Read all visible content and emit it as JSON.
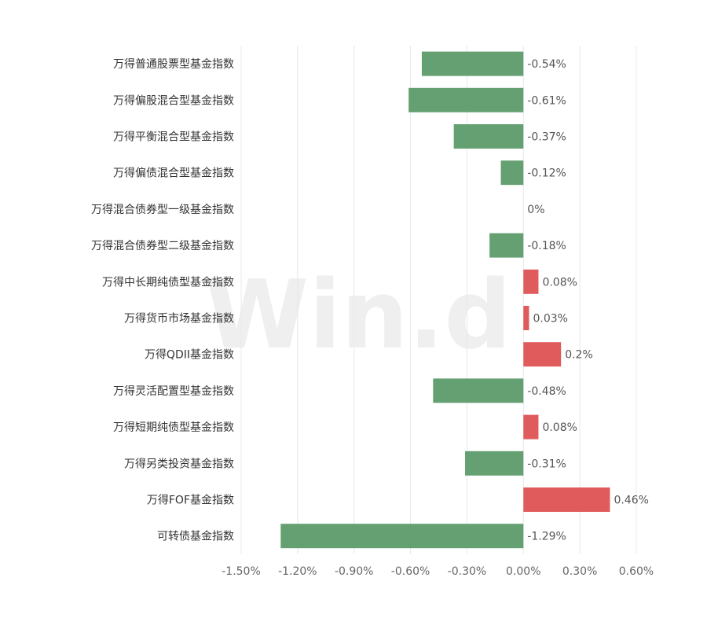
{
  "watermark": "Win.d",
  "colors": {
    "negative": "#64a072",
    "positive": "#e05c5c"
  },
  "chart_data": {
    "type": "bar",
    "orientation": "horizontal",
    "categories": [
      "万得普通股票型基金指数",
      "万得偏股混合型基金指数",
      "万得平衡混合型基金指数",
      "万得偏债混合型基金指数",
      "万得混合债券型一级基金指数",
      "万得混合债券型二级基金指数",
      "万得中长期纯债型基金指数",
      "万得货币市场基金指数",
      "万得QDII基金指数",
      "万得灵活配置型基金指数",
      "万得短期纯债型基金指数",
      "万得另类投资基金指数",
      "万得FOF基金指数",
      "可转债基金指数"
    ],
    "values": [
      -0.54,
      -0.61,
      -0.37,
      -0.12,
      0,
      -0.18,
      0.08,
      0.03,
      0.2,
      -0.48,
      0.08,
      -0.31,
      0.46,
      -1.29
    ],
    "data_labels": [
      "-0.54%",
      "-0.61%",
      "-0.37%",
      "-0.12%",
      "0%",
      "-0.18%",
      "0.08%",
      "0.03%",
      "0.2%",
      "-0.48%",
      "0.08%",
      "-0.31%",
      "0.46%",
      "-1.29%"
    ],
    "xlim": [
      -1.5,
      0.6
    ],
    "xticks": [
      -1.5,
      -1.2,
      -0.9,
      -0.6,
      -0.3,
      0,
      0.3,
      0.6
    ],
    "xtick_labels": [
      "-1.50%",
      "-1.20%",
      "-0.90%",
      "-0.60%",
      "-0.30%",
      "0.00%",
      "0.30%",
      "0.60%"
    ],
    "grid": true,
    "title": "",
    "xlabel": "",
    "ylabel": ""
  }
}
